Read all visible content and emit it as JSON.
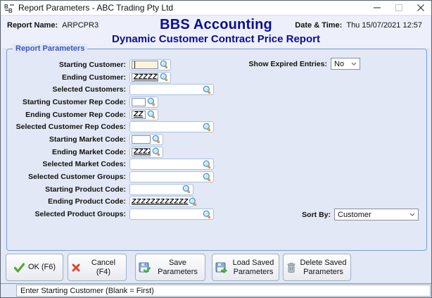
{
  "window": {
    "title": "Report Parameters - ABC Trading Pty Ltd",
    "app_icon": "bbs-logo",
    "controls": [
      "minimize",
      "maximize",
      "close"
    ]
  },
  "header": {
    "report_name_label": "Report Name:",
    "report_name_value": "ARPCPR3",
    "app_title": "BBS Accounting",
    "report_title": "Dynamic Customer Contract Price Report",
    "datetime_label": "Date & Time:",
    "datetime_value": "Thu 15/07/2021 12:57"
  },
  "parameters": {
    "group_label": "Report Parameters",
    "lookup_icon": "magnifier",
    "fields": [
      {
        "name": "starting-customer",
        "label": "Starting Customer:",
        "value": "",
        "focused": true
      },
      {
        "name": "ending-customer",
        "label": "Ending Customer:",
        "value": "ZZZZZZ"
      },
      {
        "name": "selected-customers",
        "label": "Selected Customers:",
        "value": ""
      },
      {
        "name": "starting-customer-rep-code",
        "label": "Starting Customer Rep Code:",
        "value": ""
      },
      {
        "name": "ending-customer-rep-code",
        "label": "Ending Customer Rep Code:",
        "value": "ZZ"
      },
      {
        "name": "selected-customer-rep-codes",
        "label": "Selected Customer Rep Codes:",
        "value": ""
      },
      {
        "name": "starting-market-code",
        "label": "Starting Market Code:",
        "value": ""
      },
      {
        "name": "ending-market-code",
        "label": "Ending Market Code:",
        "value": "ZZZZ"
      },
      {
        "name": "selected-market-codes",
        "label": "Selected Market Codes:",
        "value": ""
      },
      {
        "name": "selected-customer-groups",
        "label": "Selected Customer Groups:",
        "value": ""
      },
      {
        "name": "starting-product-code",
        "label": "Starting Product Code:",
        "value": ""
      },
      {
        "name": "ending-product-code",
        "label": "Ending Product Code:",
        "value": "ZZZZZZZZZZZZ"
      },
      {
        "name": "selected-product-groups",
        "label": "Selected Product Groups:",
        "value": ""
      }
    ],
    "show_expired": {
      "label": "Show Expired Entries:",
      "value": "No"
    },
    "sort_by": {
      "label": "Sort By:",
      "value": "Customer"
    }
  },
  "buttons": [
    {
      "name": "ok-button",
      "label": "OK (F6)",
      "icon": "check"
    },
    {
      "name": "cancel-button",
      "label": "Cancel (F4)",
      "icon": "cross"
    },
    {
      "name": "save-parameters-button",
      "label": "Save Parameters",
      "icon": "floppy-save"
    },
    {
      "name": "load-saved-parameters-button",
      "label": "Load Saved Parameters",
      "icon": "floppy-load"
    },
    {
      "name": "delete-saved-parameters-button",
      "label": "Delete Saved Parameters",
      "icon": "trash"
    }
  ],
  "status_bar": {
    "message": "Enter Starting Customer (Blank = First)"
  },
  "colors": {
    "title_navy": "#0c0c96",
    "group_border": "#7e9cd4",
    "group_label": "#3a56c4",
    "focused_field_bg": "#fdf3da",
    "ok_check_green": "#57a839",
    "cancel_cross_red": "#dd4635"
  }
}
